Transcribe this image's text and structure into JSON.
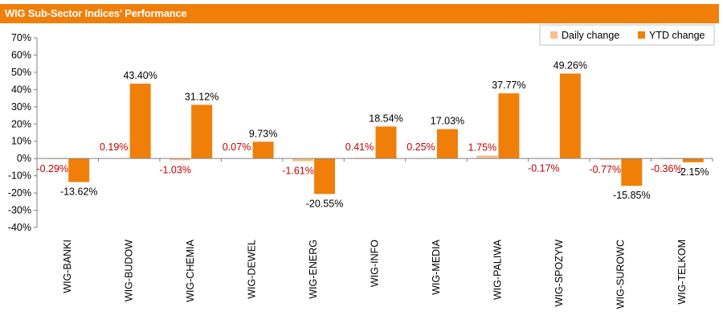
{
  "title": "WIG Sub-Sector Indices' Performance",
  "colors": {
    "title_bar": "#f07f09",
    "daily": "#f9c08a",
    "ytd": "#f07f09",
    "daily_label": "#c00000",
    "ytd_label": "#000000"
  },
  "chart_data": {
    "type": "bar",
    "categories": [
      "WIG-BANKI",
      "WIG-BUDOW",
      "WIG-CHEMIA",
      "WIG-DEWEL",
      "WIG-ENERG",
      "WIG-INFO",
      "WIG-MEDIA",
      "WIG-PALIWA",
      "WIG-SPOZYW",
      "WIG-SUROWC",
      "WIG-TELKOM"
    ],
    "series": [
      {
        "name": "Daily change",
        "values": [
          -0.29,
          0.19,
          -1.03,
          0.07,
          -1.61,
          0.41,
          0.25,
          1.75,
          -0.17,
          -0.77,
          -0.36
        ],
        "labels": [
          "-0.29%",
          "0.19%",
          "-1.03%",
          "0.07%",
          "-1.61%",
          "0.41%",
          "0.25%",
          "1.75%",
          "-0.17%",
          "-0.77%",
          "-0.36%"
        ]
      },
      {
        "name": "YTD change",
        "values": [
          -13.62,
          43.4,
          31.12,
          9.73,
          -20.55,
          18.54,
          17.03,
          37.77,
          49.26,
          -15.85,
          -2.15
        ],
        "labels": [
          "-13.62%",
          "43.40%",
          "31.12%",
          "9.73%",
          "-20.55%",
          "18.54%",
          "17.03%",
          "37.77%",
          "49.26%",
          "-15.85%",
          "-2.15%"
        ]
      }
    ],
    "ylim": [
      -40,
      70
    ],
    "yticks": [
      70,
      60,
      50,
      40,
      30,
      20,
      10,
      0,
      -10,
      -20,
      -30,
      -40
    ],
    "ytick_labels": [
      "70%",
      "60%",
      "50%",
      "40%",
      "30%",
      "20%",
      "10%",
      "0%",
      "-10%",
      "-20%",
      "-30%",
      "-40%"
    ],
    "xlabel": "",
    "ylabel": "",
    "grid": false,
    "legend_position": "top-right"
  }
}
